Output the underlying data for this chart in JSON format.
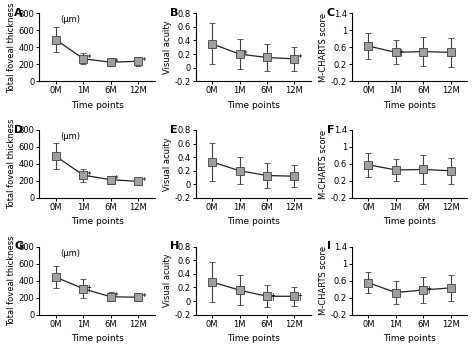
{
  "xticklabels": [
    "0M",
    "1M",
    "6M",
    "12M"
  ],
  "xlabel": "Time points",
  "panels": [
    {
      "label": "A",
      "ylabel": "Total foveal thickness",
      "yunit": "(μm)",
      "ylim": [
        0,
        800
      ],
      "yticks": [
        0,
        200,
        400,
        600,
        800
      ],
      "yticklabels": [
        "0",
        "200",
        "400",
        "600",
        "800"
      ],
      "means": [
        490,
        265,
        225,
        235
      ],
      "errors": [
        150,
        65,
        50,
        55
      ],
      "significance": [
        "",
        "*",
        "*",
        "*"
      ]
    },
    {
      "label": "B",
      "ylabel": "Visual acuity",
      "yunit": "",
      "ylim": [
        -0.2,
        0.8
      ],
      "yticks": [
        -0.2,
        0,
        0.2,
        0.4,
        0.6,
        0.8
      ],
      "yticklabels": [
        "-0.2",
        "0",
        "0.2",
        "0.4",
        "0.6",
        "0.8"
      ],
      "means": [
        0.35,
        0.2,
        0.15,
        0.13
      ],
      "errors": [
        0.3,
        0.22,
        0.2,
        0.18
      ],
      "significance": [
        "",
        "*",
        "",
        "*"
      ]
    },
    {
      "label": "C",
      "ylabel": "M-CHARTS score",
      "yunit": "",
      "ylim": [
        -0.2,
        1.4
      ],
      "yticks": [
        -0.2,
        0.2,
        0.6,
        1.0,
        1.4
      ],
      "yticklabels": [
        "-0.2",
        "0.2",
        "0.6",
        "1",
        "1.4"
      ],
      "means": [
        0.63,
        0.48,
        0.5,
        0.48
      ],
      "errors": [
        0.3,
        0.28,
        0.35,
        0.35
      ],
      "significance": [
        "",
        "†",
        "",
        ""
      ]
    },
    {
      "label": "D",
      "ylabel": "Total foveal thickness",
      "yunit": "(μm)",
      "ylim": [
        0,
        800
      ],
      "yticks": [
        0,
        200,
        400,
        600,
        800
      ],
      "yticklabels": [
        "0",
        "200",
        "400",
        "600",
        "800"
      ],
      "means": [
        490,
        268,
        215,
        195
      ],
      "errors": [
        155,
        75,
        45,
        45
      ],
      "significance": [
        "",
        "*",
        "*",
        "*"
      ]
    },
    {
      "label": "E",
      "ylabel": "Visual acuity",
      "yunit": "",
      "ylim": [
        -0.2,
        0.8
      ],
      "yticks": [
        -0.2,
        0,
        0.2,
        0.4,
        0.6,
        0.8
      ],
      "yticklabels": [
        "-0.2",
        "0",
        "0.2",
        "0.4",
        "0.6",
        "0.8"
      ],
      "means": [
        0.33,
        0.2,
        0.13,
        0.12
      ],
      "errors": [
        0.28,
        0.2,
        0.18,
        0.16
      ],
      "significance": [
        "",
        "",
        "",
        ""
      ]
    },
    {
      "label": "F",
      "ylabel": "M-CHARTS score",
      "yunit": "",
      "ylim": [
        -0.2,
        1.4
      ],
      "yticks": [
        -0.2,
        0.2,
        0.6,
        1.0,
        1.4
      ],
      "yticklabels": [
        "-0.2",
        "0.2",
        "0.6",
        "1",
        "1.4"
      ],
      "means": [
        0.58,
        0.46,
        0.47,
        0.44
      ],
      "errors": [
        0.28,
        0.26,
        0.33,
        0.3
      ],
      "significance": [
        "",
        "",
        "",
        ""
      ]
    },
    {
      "label": "G",
      "ylabel": "Total foveal thickness",
      "yunit": "(μm)",
      "ylim": [
        0,
        800
      ],
      "yticks": [
        0,
        200,
        400,
        600,
        800
      ],
      "yticklabels": [
        "0",
        "200",
        "400",
        "600",
        "800"
      ],
      "means": [
        440,
        305,
        210,
        205
      ],
      "errors": [
        130,
        110,
        55,
        45
      ],
      "significance": [
        "",
        "†",
        "*",
        "*"
      ]
    },
    {
      "label": "H",
      "ylabel": "Visual acuity",
      "yunit": "",
      "ylim": [
        -0.2,
        0.8
      ],
      "yticks": [
        -0.2,
        0,
        0.2,
        0.4,
        0.6,
        0.8
      ],
      "yticklabels": [
        "-0.2",
        "0",
        "0.2",
        "0.4",
        "0.6",
        "0.8"
      ],
      "means": [
        0.28,
        0.16,
        0.07,
        0.07
      ],
      "errors": [
        0.3,
        0.22,
        0.16,
        0.14
      ],
      "significance": [
        "",
        "",
        "†",
        "†"
      ]
    },
    {
      "label": "I",
      "ylabel": "M-CHARTS score",
      "yunit": "",
      "ylim": [
        -0.2,
        1.4
      ],
      "yticks": [
        -0.2,
        0.2,
        0.6,
        1.0,
        1.4
      ],
      "yticklabels": [
        "-0.2",
        "0.2",
        "0.6",
        "1",
        "1.4"
      ],
      "means": [
        0.55,
        0.32,
        0.38,
        0.43
      ],
      "errors": [
        0.25,
        0.28,
        0.3,
        0.3
      ],
      "significance": [
        "",
        "",
        "†",
        ""
      ]
    }
  ],
  "marker_facecolor": "#a0a0a0",
  "marker_edgecolor": "#404040",
  "line_color": "#202020",
  "marker_size": 6,
  "marker": "s",
  "capsize": 2,
  "elinewidth": 0.8,
  "linewidth": 0.9,
  "fontsize_ylabel": 6,
  "fontsize_xlabel": 6.5,
  "fontsize_tick": 6,
  "fontsize_panel": 8,
  "fontsize_sig": 6.5,
  "fontsize_unit": 6
}
